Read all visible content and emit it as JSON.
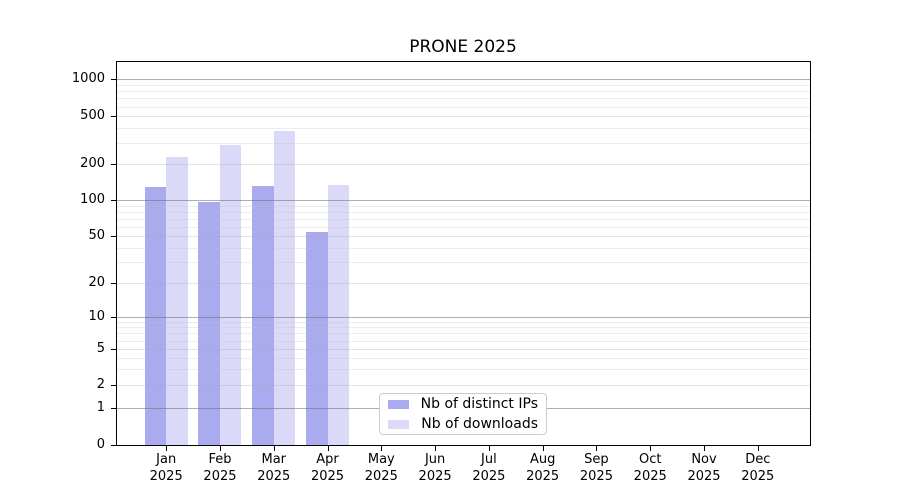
{
  "title": "PRONE 2025",
  "chart_data": {
    "type": "bar",
    "title": "PRONE 2025",
    "categories": [
      "Jan",
      "Feb",
      "Mar",
      "Apr",
      "May",
      "Jun",
      "Jul",
      "Aug",
      "Sep",
      "Oct",
      "Nov",
      "Dec"
    ],
    "year": "2025",
    "series": [
      {
        "name": "Nb of distinct IPs",
        "color": "#5555dd",
        "alpha": 0.5,
        "rendered_color": "#aaaaee",
        "values": [
          128,
          96,
          132,
          54,
          null,
          null,
          null,
          null,
          null,
          null,
          null,
          null
        ]
      },
      {
        "name": "Nb of downloads",
        "color": "#5555dd",
        "alpha": 0.22,
        "rendered_color": "#d8d8f8",
        "values": [
          230,
          290,
          375,
          134,
          null,
          null,
          null,
          null,
          null,
          null,
          null,
          null
        ]
      }
    ],
    "y_axis": {
      "scale": "symlog",
      "tick_labels": [
        "0",
        "1",
        "2",
        "5",
        "10",
        "20",
        "50",
        "100",
        "200",
        "500",
        "1000"
      ],
      "ticks": [
        0,
        1,
        2,
        5,
        10,
        20,
        50,
        100,
        200,
        500,
        1000
      ],
      "minor_ticks": [
        3,
        4,
        6,
        7,
        8,
        9,
        30,
        40,
        60,
        70,
        80,
        90,
        300,
        400,
        600,
        700,
        800,
        900
      ],
      "range_top": 1400
    },
    "x_axis": {
      "label_line2": "2025"
    },
    "legend": {
      "position": "inside-bottom-center",
      "entries": [
        "Nb of distinct IPs",
        "Nb of downloads"
      ]
    },
    "grid": true
  },
  "colors": {
    "background": "#ffffff",
    "axis": "#000000",
    "grid_power10": "#b2b2b2",
    "grid_labeled": "#e7e7e7",
    "grid_minor": "#f2f2f2",
    "legend_border": "#cccccc",
    "text": "#000000"
  }
}
